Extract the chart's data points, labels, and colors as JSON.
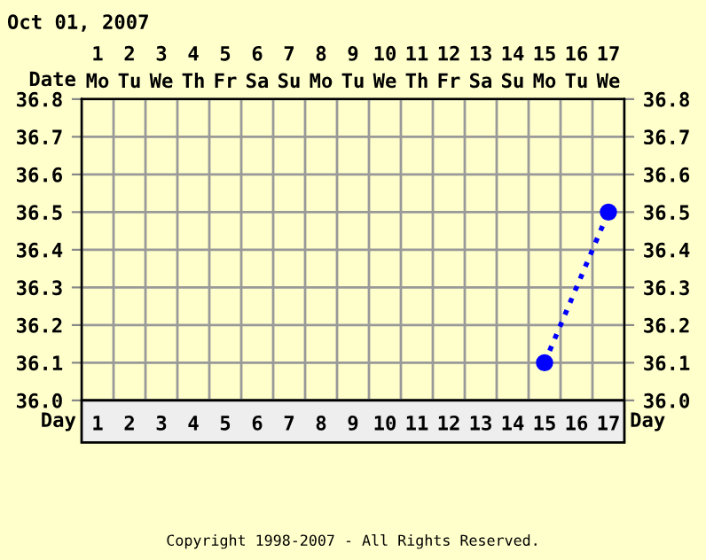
{
  "chart_data": {
    "type": "line",
    "title": "Oct 01, 2007",
    "x": [
      15,
      17
    ],
    "series": [
      {
        "color": "#0000ff",
        "values": [
          36.1,
          36.5
        ]
      }
    ],
    "xlim": [
      0.5,
      17.5
    ],
    "xticks": [
      1,
      2,
      3,
      4,
      5,
      6,
      7,
      8,
      9,
      10,
      11,
      12,
      13,
      14,
      15,
      16,
      17
    ],
    "x2lim": [
      0.5,
      17.5
    ],
    "x2ticks": [
      1,
      2,
      3,
      4,
      5,
      6,
      7,
      8,
      9,
      10,
      11,
      12,
      13,
      14,
      15,
      16,
      17
    ],
    "x2label": "Date",
    "xlabel": "Day",
    "ylim": [
      36.0,
      36.8
    ],
    "yticks": [
      {
        "value": 36.0,
        "label": "36.0"
      },
      36.1,
      36.2,
      36.3,
      36.4,
      36.5,
      36.6,
      36.7,
      36.8
    ],
    "y2lim": [
      36.0,
      36.8
    ],
    "y2ticks": [
      {
        "value": 36.0,
        "label": "36.0"
      },
      36.1,
      36.2,
      36.3,
      36.4,
      36.5,
      36.6,
      36.7,
      36.8
    ],
    "y2label": "Day",
    "grid": true,
    "marker": "circle",
    "line_style": "dotted",
    "legend": false,
    "annotations": [
      "Mo",
      "Tu",
      "We",
      "Th",
      "Fr",
      "Sa",
      "Su",
      "Mo",
      "Tu",
      "We",
      "Th",
      "Fr",
      "Sa",
      "Su",
      "Mo",
      "Tu",
      "We",
      "Copyright 1998-2007 - All Rights Reserved."
    ]
  }
}
